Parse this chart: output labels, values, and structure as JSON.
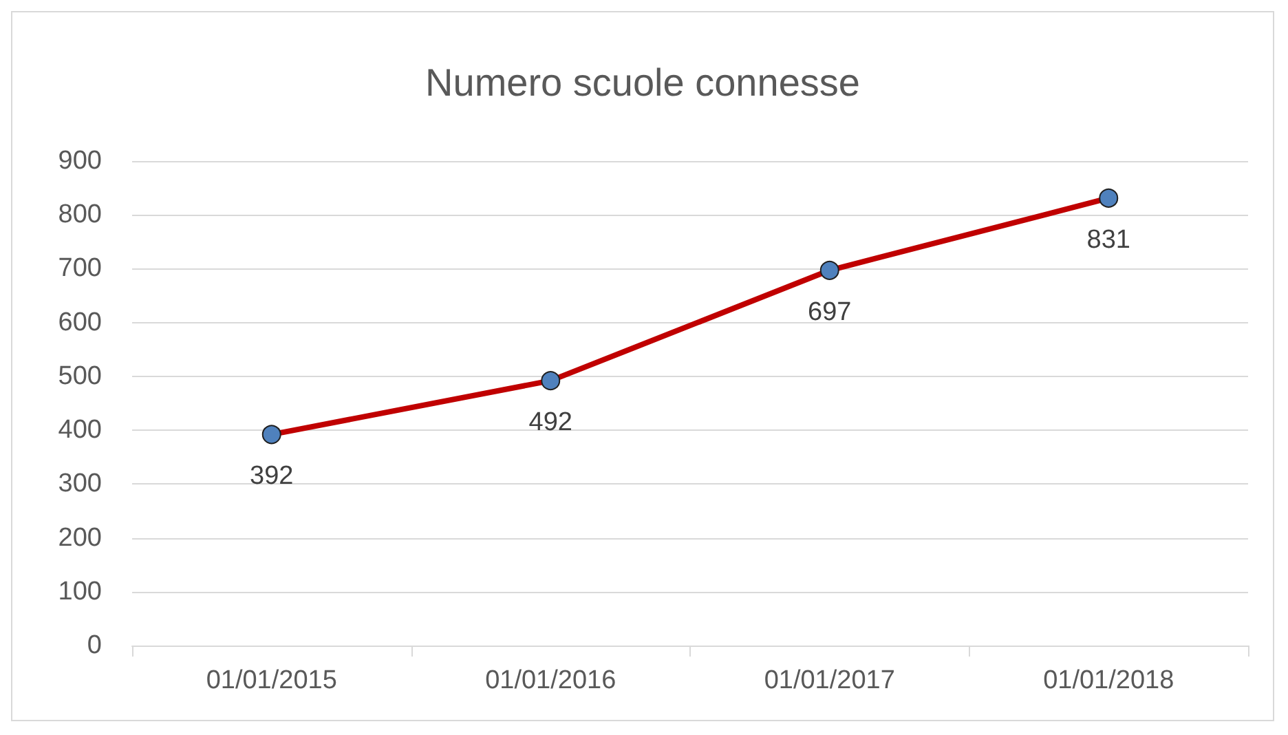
{
  "chart_data": {
    "type": "line",
    "title": "Numero scuole connesse",
    "categories": [
      "01/01/2015",
      "01/01/2016",
      "01/01/2017",
      "01/01/2018"
    ],
    "series": [
      {
        "color": "#c00000",
        "colors": [
          "#4f81bd",
          "#4f81bd",
          "#4f81bd",
          "#4f81bd"
        ],
        "values": [
          392,
          492,
          697,
          831
        ]
      }
    ],
    "ylim": [
      0,
      900
    ],
    "yticks": [
      0,
      100,
      200,
      300,
      400,
      500,
      600,
      700,
      800,
      900
    ],
    "grid": "y",
    "marker": "circle",
    "line_style": "solid",
    "data_labels": true
  }
}
